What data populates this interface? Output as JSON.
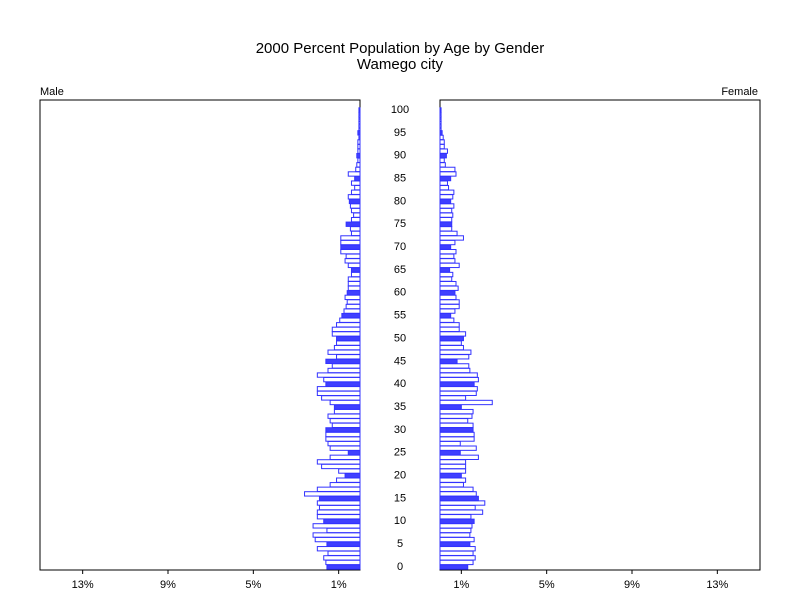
{
  "chart_data": {
    "type": "pyramid",
    "title": "2000 Percent Population by Age by Gender",
    "subtitle": "Wamego city",
    "categories": [
      0,
      1,
      2,
      3,
      4,
      5,
      6,
      7,
      8,
      9,
      10,
      11,
      12,
      13,
      14,
      15,
      16,
      17,
      18,
      19,
      20,
      21,
      22,
      23,
      24,
      25,
      26,
      27,
      28,
      29,
      30,
      31,
      32,
      33,
      34,
      35,
      36,
      37,
      38,
      39,
      40,
      41,
      42,
      43,
      44,
      45,
      46,
      47,
      48,
      49,
      50,
      51,
      52,
      53,
      54,
      55,
      56,
      57,
      58,
      59,
      60,
      61,
      62,
      63,
      64,
      65,
      66,
      67,
      68,
      69,
      70,
      71,
      72,
      73,
      74,
      75,
      76,
      77,
      78,
      79,
      80,
      81,
      82,
      83,
      84,
      85,
      86,
      87,
      88,
      89,
      90,
      91,
      92,
      93,
      94,
      95,
      96,
      97,
      98,
      99,
      100
    ],
    "series": [
      {
        "name": "Male",
        "color": "#3333ff",
        "values": [
          1.55,
          1.6,
          1.7,
          1.5,
          2.0,
          1.55,
          2.1,
          2.2,
          1.55,
          2.2,
          1.7,
          2.0,
          2.0,
          1.9,
          2.0,
          1.9,
          2.6,
          2.0,
          1.4,
          1.1,
          0.7,
          1.0,
          1.8,
          2.0,
          1.4,
          0.55,
          1.4,
          1.5,
          1.6,
          1.6,
          1.6,
          1.3,
          1.4,
          1.5,
          1.2,
          1.2,
          1.4,
          1.8,
          2.0,
          2.0,
          1.6,
          1.7,
          2.0,
          1.5,
          1.3,
          1.6,
          1.1,
          1.5,
          1.2,
          1.1,
          1.1,
          1.3,
          1.3,
          1.1,
          0.95,
          0.85,
          0.75,
          0.65,
          0.6,
          0.7,
          0.6,
          0.55,
          0.55,
          0.55,
          0.4,
          0.4,
          0.55,
          0.7,
          0.65,
          0.9,
          0.9,
          0.9,
          0.9,
          0.4,
          0.45,
          0.65,
          0.4,
          0.3,
          0.4,
          0.45,
          0.5,
          0.55,
          0.4,
          0.25,
          0.4,
          0.25,
          0.55,
          0.2,
          0.15,
          0.1,
          0.15,
          0.1,
          0.1,
          0.1,
          0.05,
          0.1,
          0.05,
          0.05,
          0.05,
          0.05,
          0.05
        ]
      },
      {
        "name": "Female",
        "color": "#3333ff",
        "values": [
          1.3,
          1.55,
          1.65,
          1.55,
          1.65,
          1.4,
          1.6,
          1.4,
          1.45,
          1.5,
          1.6,
          1.45,
          2.0,
          1.65,
          2.1,
          1.8,
          1.7,
          1.55,
          1.1,
          1.2,
          1.0,
          1.2,
          1.2,
          1.2,
          1.8,
          0.95,
          1.7,
          0.95,
          1.6,
          1.6,
          1.55,
          1.55,
          1.3,
          1.5,
          1.55,
          1.0,
          2.45,
          1.2,
          1.7,
          1.75,
          1.6,
          1.8,
          1.75,
          1.4,
          1.35,
          0.8,
          1.35,
          1.45,
          1.1,
          1.0,
          1.1,
          1.2,
          0.9,
          0.9,
          0.65,
          0.5,
          0.7,
          0.9,
          0.9,
          0.75,
          0.7,
          0.85,
          0.75,
          0.55,
          0.6,
          0.45,
          0.9,
          0.7,
          0.65,
          0.75,
          0.5,
          0.7,
          1.1,
          0.8,
          0.55,
          0.55,
          0.55,
          0.6,
          0.55,
          0.65,
          0.5,
          0.6,
          0.65,
          0.4,
          0.35,
          0.5,
          0.75,
          0.7,
          0.25,
          0.2,
          0.3,
          0.35,
          0.2,
          0.2,
          0.15,
          0.1,
          0.05,
          0.05,
          0.05,
          0.05,
          0.05
        ]
      }
    ],
    "highlight_color": "#3f3fff",
    "ylim": [
      0,
      100
    ],
    "yticks": [
      0,
      5,
      10,
      15,
      20,
      25,
      30,
      35,
      40,
      45,
      50,
      55,
      60,
      65,
      70,
      75,
      80,
      85,
      90,
      95,
      100
    ],
    "xlim": [
      0,
      15
    ],
    "xticks": [
      {
        "value": 1,
        "label": "1%"
      },
      {
        "value": 5,
        "label": "5%"
      },
      {
        "value": 9,
        "label": "9%"
      },
      {
        "value": 13,
        "label": "13%"
      }
    ]
  }
}
